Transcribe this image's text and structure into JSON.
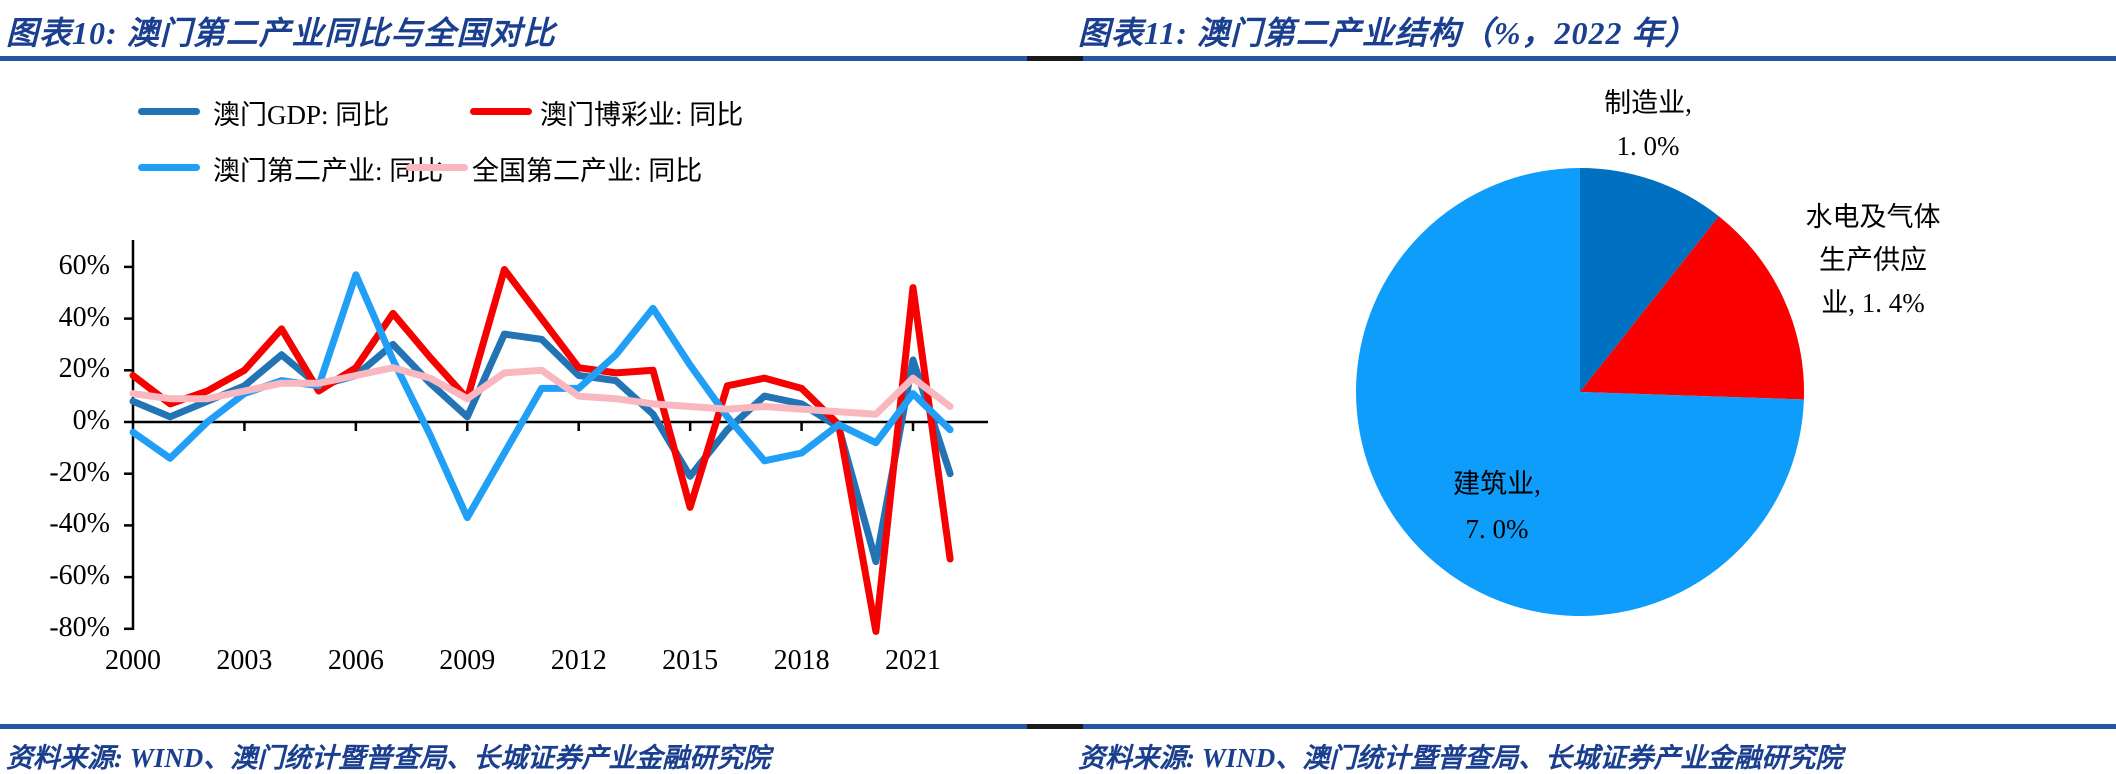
{
  "colors": {
    "title_text": "#1B3F8F",
    "source_text": "#1B3F8F",
    "rule_blue": "#2456A4",
    "rule_black": "#1A1A1A",
    "axis": "#000000",
    "gdp_line": "#2374B5",
    "gaming_line": "#F60000",
    "macau_secondary_line": "#219FF7",
    "china_secondary_line": "#F9B8BF",
    "pie_manufacturing": "#0070C0",
    "pie_utilities": "#FB0000",
    "pie_construction": "#0E9DFA"
  },
  "left_panel": {
    "title": "图表10:  澳门第二产业同比与全国对比",
    "source": "资料来源: WIND、澳门统计暨普查局、长城证券产业金融研究院"
  },
  "right_panel": {
    "title": "图表11:  澳门第二产业结构（%，2022 年）",
    "source": "资料来源: WIND、澳门统计暨普查局、长城证券产业金融研究院"
  },
  "chart_data": [
    {
      "type": "line",
      "title": "澳门第二产业同比与全国对比",
      "x": [
        2000,
        2001,
        2002,
        2003,
        2004,
        2005,
        2006,
        2007,
        2008,
        2009,
        2010,
        2011,
        2012,
        2013,
        2014,
        2015,
        2016,
        2017,
        2018,
        2019,
        2020,
        2021,
        2022
      ],
      "x_tick_years": [
        2000,
        2003,
        2006,
        2009,
        2012,
        2015,
        2018,
        2021
      ],
      "x_tick_labels": [
        "2000",
        "2003",
        "2006",
        "2009",
        "2012",
        "2015",
        "2018",
        "2021"
      ],
      "y_ticks": [
        60,
        40,
        20,
        0,
        -20,
        -40,
        -60,
        -80
      ],
      "y_tick_labels": [
        "60%",
        "40%",
        "20%",
        "0%",
        "-20%",
        "-40%",
        "-60%",
        "-80%"
      ],
      "ylim": [
        -80,
        70
      ],
      "unit": "percent",
      "grid": false,
      "legend_position": "top",
      "series": [
        {
          "name": "澳门GDP: 同比",
          "color": "#2374B5",
          "values": [
            8,
            2,
            8,
            14,
            26,
            14,
            18,
            30,
            15,
            2,
            34,
            32,
            18,
            16,
            3,
            -21,
            -3,
            10,
            7,
            -2,
            -54,
            24,
            -20
          ]
        },
        {
          "name": "澳门博彩业: 同比",
          "color": "#F60000",
          "values": [
            18,
            7,
            12,
            20,
            36,
            12,
            21,
            42,
            25,
            9,
            59,
            40,
            21,
            19,
            20,
            -33,
            14,
            17,
            13,
            -1,
            -81,
            52,
            -53
          ]
        },
        {
          "name": "澳门第二产业: 同比",
          "color": "#219FF7",
          "values": [
            -4,
            -14,
            0,
            11,
            16,
            14,
            57,
            24,
            -5,
            -37,
            -12,
            13,
            13,
            26,
            44,
            22,
            2,
            -15,
            -12,
            -1,
            -8,
            11,
            -3
          ]
        },
        {
          "name": "全国第二产业: 同比",
          "color": "#F9B8BF",
          "values": [
            11,
            9,
            9,
            12,
            15,
            15,
            18,
            21,
            17,
            9,
            19,
            20,
            10,
            9,
            7,
            6,
            5,
            6,
            5,
            4,
            3,
            17,
            6
          ]
        }
      ]
    },
    {
      "type": "pie",
      "title": "澳门第二产业结构（%，2022年）",
      "start": "12-oclock",
      "direction": "clockwise",
      "slices": [
        {
          "key": "manufacturing",
          "label": "制造业",
          "value": 1.0,
          "color": "#0070C0"
        },
        {
          "key": "utilities",
          "label": "水电及气体生产供应业",
          "value": 1.4,
          "color": "#FB0000"
        },
        {
          "key": "construction",
          "label": "建筑业",
          "value": 7.0,
          "color": "#0E9DFA"
        }
      ]
    }
  ],
  "pie_labels": {
    "manufacturing": [
      "制造业,",
      "1. 0%"
    ],
    "utilities": [
      "水电及气体",
      "生产供应",
      "业, 1. 4%"
    ],
    "construction": [
      "建筑业,",
      "7. 0%"
    ]
  }
}
